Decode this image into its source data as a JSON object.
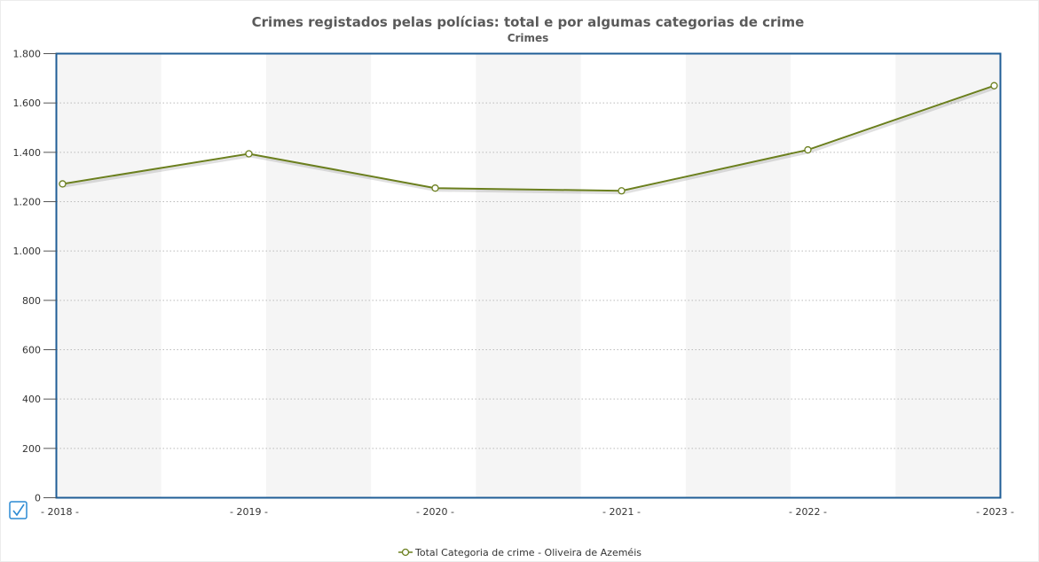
{
  "chart_data": {
    "type": "line",
    "title": "Crimes registados pelas polícias: total e por algumas categorias de crime",
    "subtitle": "Crimes",
    "x": [
      "2018",
      "2019",
      "2020",
      "2021",
      "2022",
      "2023"
    ],
    "x_tick_labels": [
      "- 2018 -",
      "- 2019 -",
      "- 2020 -",
      "- 2021 -",
      "- 2022 -",
      "- 2023 -"
    ],
    "series": [
      {
        "name": "Total Categoria de crime - Oliveira de Azeméis",
        "values": [
          1272,
          1394,
          1255,
          1244,
          1410,
          1670
        ],
        "color": "#6b7f1e"
      }
    ],
    "ylim": [
      0,
      1800
    ],
    "y_ticks": [
      0,
      200,
      400,
      600,
      800,
      1000,
      1200,
      1400,
      1600,
      1800
    ],
    "y_tick_labels": [
      "0",
      "200",
      "400",
      "600",
      "800",
      "1.000",
      "1.200",
      "1.400",
      "1.600",
      "1.800"
    ],
    "grid": true,
    "legend_position": "bottom-center",
    "colors": {
      "plot_border": "#1f5d96",
      "band": "#f5f5f5",
      "grid": "#bbbbbb",
      "checkbox": "#2b8ad4"
    }
  }
}
